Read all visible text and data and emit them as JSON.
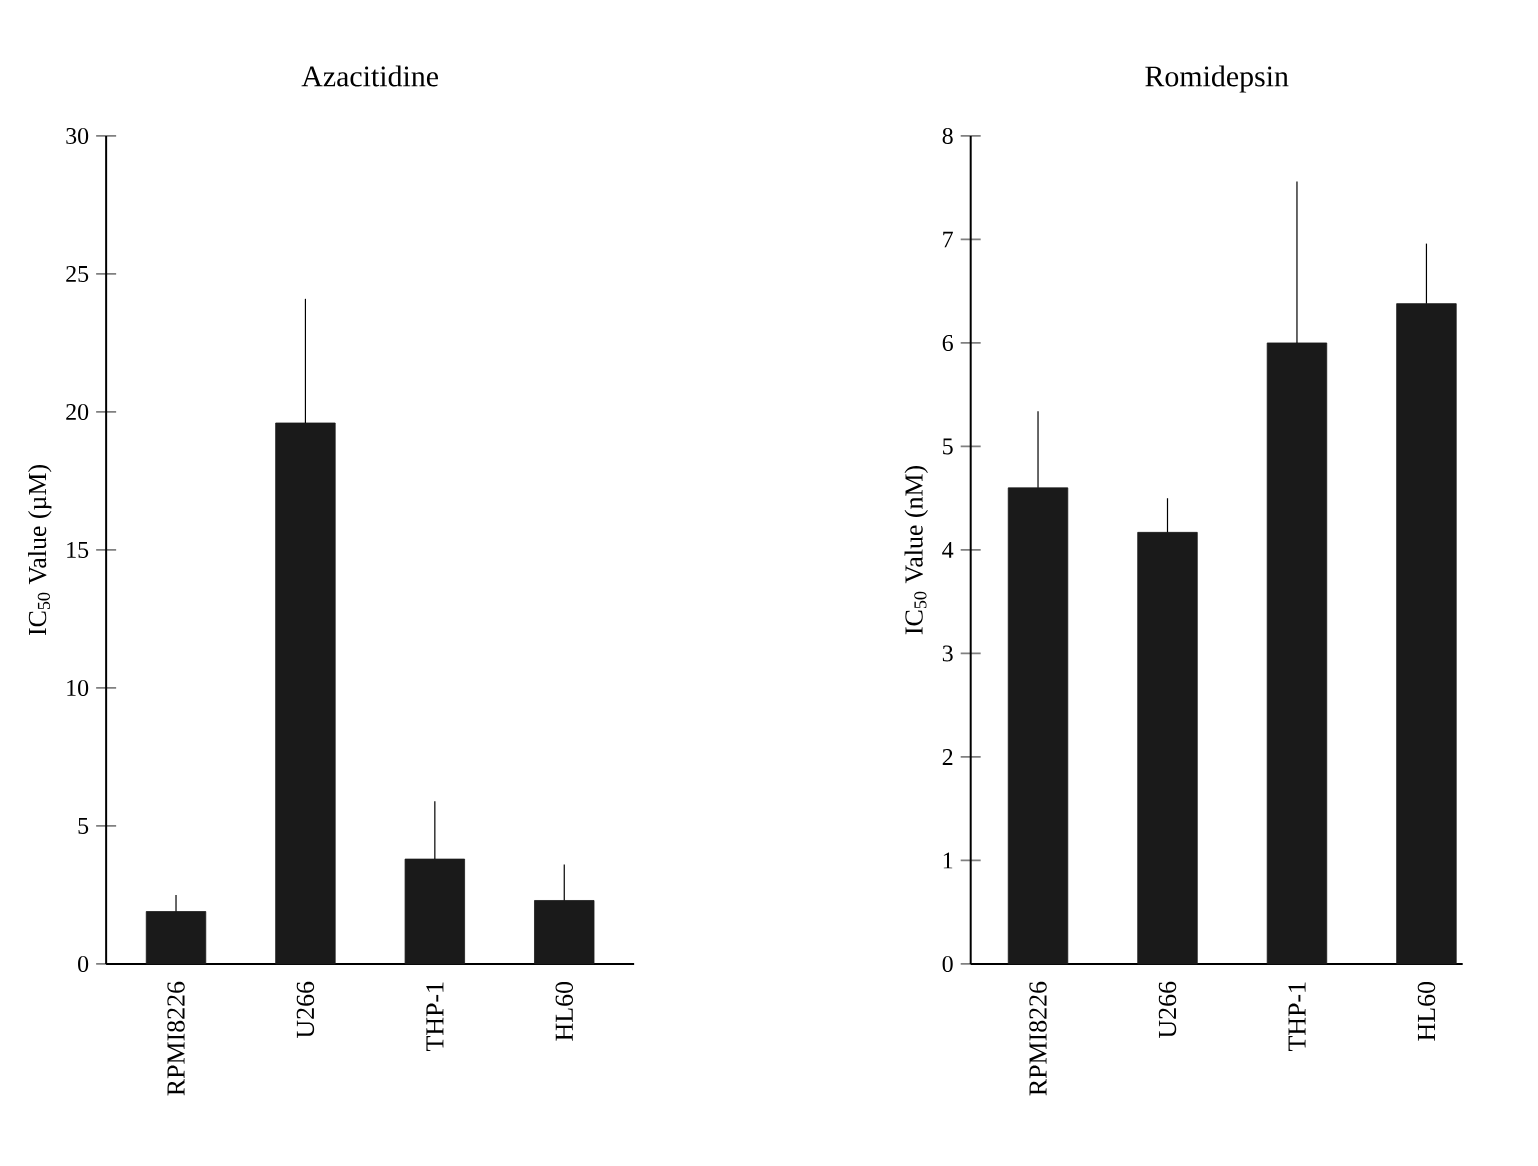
{
  "chart_data": [
    {
      "type": "bar",
      "title": "Azacitidine",
      "ylabel": "IC$_{50}$ Value (µM)",
      "categories": [
        "RPMI8226",
        "U266",
        "THP-1",
        "HL60"
      ],
      "values": [
        1.9,
        19.6,
        3.8,
        2.3
      ],
      "color": "#1a1a1a",
      "errors": [
        [
          1.9,
          2.5
        ],
        [
          19.6,
          24.1
        ],
        [
          3.8,
          5.9
        ],
        [
          2.3,
          3.6
        ]
      ],
      "ylim": [
        0,
        30
      ],
      "yticks": [
        0,
        5,
        10,
        15,
        20,
        25,
        30
      ]
    },
    {
      "type": "bar",
      "title": "Romidepsin",
      "ylabel": "IC$_{50}$ Value (nM)",
      "categories": [
        "RPMI8226",
        "U266",
        "THP-1",
        "HL60"
      ],
      "values": [
        4.6,
        4.17,
        6.0,
        6.38
      ],
      "color": "#1a1a1a",
      "errors": [
        [
          4.6,
          5.34
        ],
        [
          4.17,
          4.5
        ],
        [
          6.0,
          7.56
        ],
        [
          6.38,
          6.96
        ]
      ],
      "ylim": [
        0,
        8
      ],
      "yticks": [
        0,
        1,
        2,
        3,
        4,
        5,
        6,
        7,
        8
      ]
    }
  ]
}
